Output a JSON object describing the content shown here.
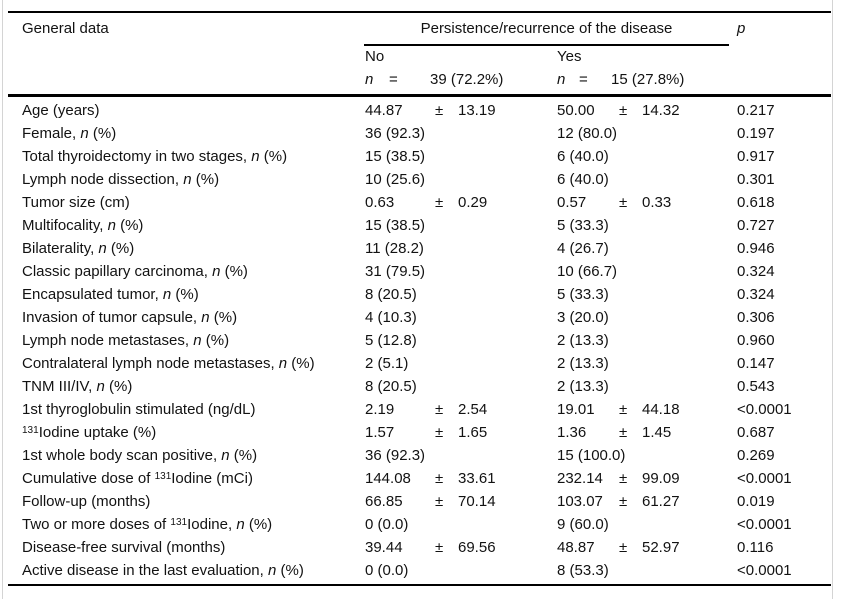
{
  "figure": {
    "background": "#ffffff",
    "rule_color": "#000000",
    "edge_line_color": "#d4d4d4",
    "text_color": "#121212"
  },
  "table": {
    "plus_minus": "±",
    "header": {
      "general_data": "General data",
      "span_title": "Persistence/recurrence of the disease",
      "p_label": "*p*",
      "groups": [
        {
          "label": "No",
          "n_symbol": "*n*",
          "equals": "=",
          "count": "39 (72.2%)"
        },
        {
          "label": "Yes",
          "n_symbol": "*n*",
          "equals": "=",
          "count": "15 (27.8%)"
        }
      ]
    },
    "rows": [
      {
        "label": "Age (years)",
        "no": {
          "mean": "44.87",
          "sd": "13.19"
        },
        "yes": {
          "mean": "50.00",
          "sd": "14.32"
        },
        "p": "0.217"
      },
      {
        "label": "Female, *n* (%)",
        "no": {
          "text": "36 (92.3)"
        },
        "yes": {
          "text": "12 (80.0)"
        },
        "p": "0.197"
      },
      {
        "label": "Total thyroidectomy in two stages, *n* (%)",
        "no": {
          "text": "15 (38.5)"
        },
        "yes": {
          "text": "6 (40.0)"
        },
        "p": "0.917"
      },
      {
        "label": "Lymph node dissection, *n* (%)",
        "no": {
          "text": "10 (25.6)"
        },
        "yes": {
          "text": "6 (40.0)"
        },
        "p": "0.301"
      },
      {
        "label": "Tumor size (cm)",
        "no": {
          "mean": "0.63",
          "sd": "0.29"
        },
        "yes": {
          "mean": "0.57",
          "sd": "0.33"
        },
        "p": "0.618"
      },
      {
        "label": "Multifocality, *n* (%)",
        "no": {
          "text": "15 (38.5)"
        },
        "yes": {
          "text": "5 (33.3)"
        },
        "p": "0.727"
      },
      {
        "label": "Bilaterality, *n* (%)",
        "no": {
          "text": "11 (28.2)"
        },
        "yes": {
          "text": "4 (26.7)"
        },
        "p": "0.946"
      },
      {
        "label": "Classic papillary carcinoma, *n* (%)",
        "no": {
          "text": "31 (79.5)"
        },
        "yes": {
          "text": "10 (66.7)"
        },
        "p": "0.324"
      },
      {
        "label": "Encapsulated tumor, *n* (%)",
        "no": {
          "text": "8 (20.5)"
        },
        "yes": {
          "text": "5 (33.3)"
        },
        "p": "0.324"
      },
      {
        "label": "Invasion of tumor capsule, *n* (%)",
        "no": {
          "text": "4 (10.3)"
        },
        "yes": {
          "text": "3 (20.0)"
        },
        "p": "0.306"
      },
      {
        "label": "Lymph node metastases, *n* (%)",
        "no": {
          "text": "5 (12.8)"
        },
        "yes": {
          "text": "2 (13.3)"
        },
        "p": "0.960"
      },
      {
        "label": "Contralateral lymph node metastases, *n* (%)",
        "no": {
          "text": "2 (5.1)"
        },
        "yes": {
          "text": "2 (13.3)"
        },
        "p": "0.147"
      },
      {
        "label": "TNM III/IV, *n* (%)",
        "no": {
          "text": "8 (20.5)"
        },
        "yes": {
          "text": "2 (13.3)"
        },
        "p": "0.543"
      },
      {
        "label": "1st thyroglobulin stimulated (ng/dL)",
        "no": {
          "mean": "2.19",
          "sd": "2.54"
        },
        "yes": {
          "mean": "19.01",
          "sd": "44.18"
        },
        "p": "<0.0001"
      },
      {
        "label": "^131^Iodine uptake (%)",
        "no": {
          "mean": "1.57",
          "sd": "1.65"
        },
        "yes": {
          "mean": "1.36",
          "sd": "1.45"
        },
        "p": "0.687"
      },
      {
        "label": "1st whole body scan positive, *n* (%)",
        "no": {
          "text": "36 (92.3)"
        },
        "yes": {
          "text": "15 (100.0)"
        },
        "p": "0.269"
      },
      {
        "label": "Cumulative dose of ^131^Iodine (mCi)",
        "no": {
          "mean": "144.08",
          "sd": "33.61"
        },
        "yes": {
          "mean": "232.14",
          "sd": "99.09"
        },
        "p": "<0.0001"
      },
      {
        "label": "Follow-up (months)",
        "no": {
          "mean": "66.85",
          "sd": "70.14"
        },
        "yes": {
          "mean": "103.07",
          "sd": "61.27"
        },
        "p": "0.019"
      },
      {
        "label": "Two or more doses of ^131^Iodine, *n* (%)",
        "no": {
          "text": "0 (0.0)"
        },
        "yes": {
          "text": "9 (60.0)"
        },
        "p": "<0.0001"
      },
      {
        "label": "Disease-free survival (months)",
        "no": {
          "mean": "39.44",
          "sd": "69.56"
        },
        "yes": {
          "mean": "48.87",
          "sd": "52.97"
        },
        "p": "0.116"
      },
      {
        "label": "Active disease in the last evaluation, *n* (%)",
        "no": {
          "text": "0 (0.0)"
        },
        "yes": {
          "text": "8 (53.3)"
        },
        "p": "<0.0001"
      }
    ]
  }
}
